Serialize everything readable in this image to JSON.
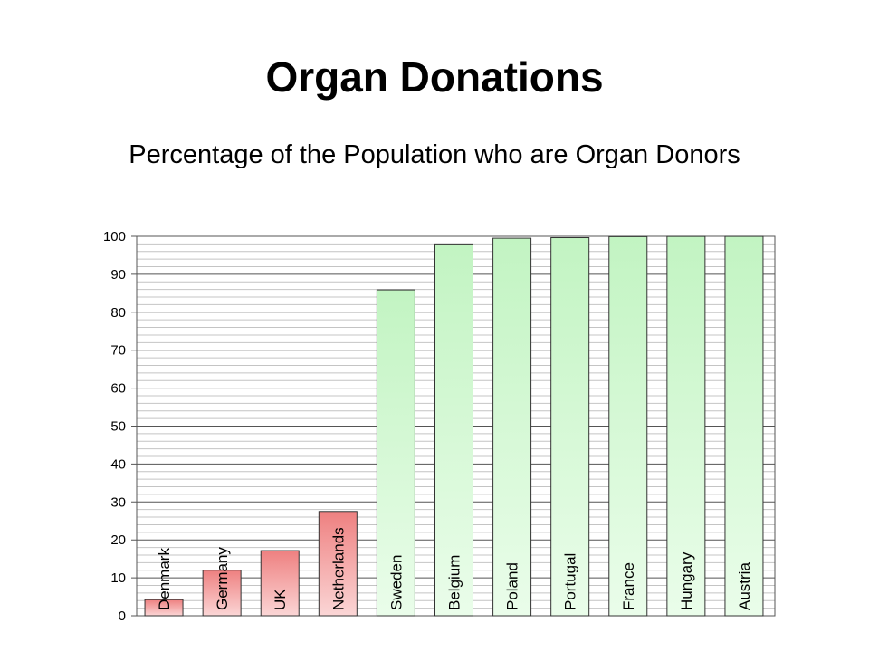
{
  "slide": {
    "title": "Organ Donations"
  },
  "chart_data": {
    "type": "bar",
    "title": "Percentage of the Population who are Organ Donors",
    "xlabel": "",
    "ylabel": "",
    "ylim": [
      0,
      100
    ],
    "yticks": [
      "0",
      "10",
      "20",
      "30",
      "40",
      "50",
      "60",
      "70",
      "80",
      "90",
      "100"
    ],
    "grid": true,
    "legend": "none",
    "categories": [
      "Denmark",
      "Germany",
      "UK",
      "Netherlands",
      "Sweden",
      "Belgium",
      "Poland",
      "Portugal",
      "France",
      "Hungary",
      "Austria"
    ],
    "values": [
      4.25,
      12,
      17.17,
      27.5,
      85.9,
      98,
      99.5,
      99.64,
      99.91,
      99.97,
      99.98
    ],
    "series_colors": {
      "low": "#f08c8c",
      "high": "#c8f5c8"
    }
  }
}
